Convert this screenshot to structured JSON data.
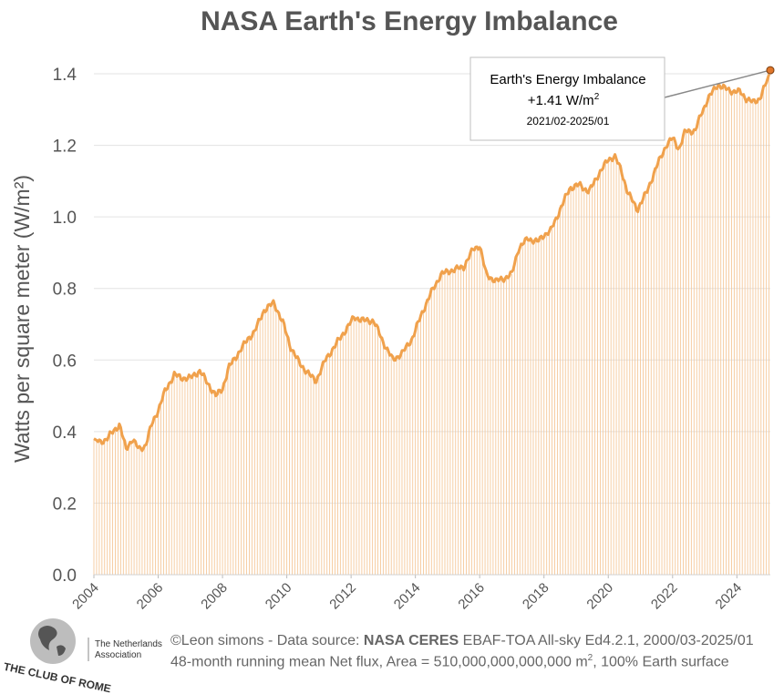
{
  "chart_data": {
    "type": "line",
    "title": "NASA Earth's Energy Imbalance",
    "ylabel": "Watts per square meter (W/m²)",
    "xlabel": "",
    "ylim": [
      0,
      1.45
    ],
    "xlim": [
      2004.0,
      2025.04
    ],
    "yticks": [
      "0.0",
      "0.2",
      "0.4",
      "0.6",
      "0.8",
      "1.0",
      "1.2",
      "1.4"
    ],
    "xticks": [
      "2004",
      "2006",
      "2008",
      "2010",
      "2012",
      "2014",
      "2016",
      "2018",
      "2020",
      "2022",
      "2024"
    ],
    "color": "#f0a14c",
    "series": [
      {
        "name": "48-month running mean Net flux",
        "points": [
          [
            2004.0,
            0.38
          ],
          [
            2004.2,
            0.37
          ],
          [
            2004.4,
            0.38
          ],
          [
            2004.6,
            0.4
          ],
          [
            2004.8,
            0.42
          ],
          [
            2005.0,
            0.35
          ],
          [
            2005.2,
            0.38
          ],
          [
            2005.4,
            0.35
          ],
          [
            2005.6,
            0.36
          ],
          [
            2005.8,
            0.42
          ],
          [
            2006.0,
            0.46
          ],
          [
            2006.2,
            0.51
          ],
          [
            2006.5,
            0.56
          ],
          [
            2006.7,
            0.55
          ],
          [
            2007.0,
            0.55
          ],
          [
            2007.3,
            0.57
          ],
          [
            2007.5,
            0.54
          ],
          [
            2007.8,
            0.5
          ],
          [
            2008.0,
            0.52
          ],
          [
            2008.2,
            0.58
          ],
          [
            2008.5,
            0.62
          ],
          [
            2008.8,
            0.66
          ],
          [
            2009.0,
            0.68
          ],
          [
            2009.3,
            0.74
          ],
          [
            2009.6,
            0.76
          ],
          [
            2009.9,
            0.7
          ],
          [
            2010.1,
            0.64
          ],
          [
            2010.4,
            0.59
          ],
          [
            2010.7,
            0.56
          ],
          [
            2010.9,
            0.54
          ],
          [
            2011.2,
            0.6
          ],
          [
            2011.5,
            0.64
          ],
          [
            2011.8,
            0.68
          ],
          [
            2012.1,
            0.72
          ],
          [
            2012.4,
            0.71
          ],
          [
            2012.7,
            0.71
          ],
          [
            2013.0,
            0.65
          ],
          [
            2013.3,
            0.6
          ],
          [
            2013.6,
            0.62
          ],
          [
            2013.9,
            0.66
          ],
          [
            2014.2,
            0.73
          ],
          [
            2014.5,
            0.79
          ],
          [
            2014.8,
            0.84
          ],
          [
            2015.1,
            0.85
          ],
          [
            2015.5,
            0.86
          ],
          [
            2015.8,
            0.91
          ],
          [
            2016.0,
            0.92
          ],
          [
            2016.2,
            0.84
          ],
          [
            2016.5,
            0.82
          ],
          [
            2016.8,
            0.83
          ],
          [
            2017.0,
            0.84
          ],
          [
            2017.2,
            0.91
          ],
          [
            2017.5,
            0.94
          ],
          [
            2017.8,
            0.93
          ],
          [
            2018.0,
            0.95
          ],
          [
            2018.2,
            0.96
          ],
          [
            2018.5,
            1.02
          ],
          [
            2018.8,
            1.08
          ],
          [
            2019.1,
            1.09
          ],
          [
            2019.4,
            1.07
          ],
          [
            2019.7,
            1.12
          ],
          [
            2020.0,
            1.16
          ],
          [
            2020.2,
            1.17
          ],
          [
            2020.4,
            1.13
          ],
          [
            2020.6,
            1.07
          ],
          [
            2020.9,
            1.02
          ],
          [
            2021.2,
            1.07
          ],
          [
            2021.5,
            1.14
          ],
          [
            2021.8,
            1.2
          ],
          [
            2022.0,
            1.22
          ],
          [
            2022.2,
            1.19
          ],
          [
            2022.4,
            1.24
          ],
          [
            2022.7,
            1.24
          ],
          [
            2022.9,
            1.29
          ],
          [
            2023.1,
            1.33
          ],
          [
            2023.4,
            1.37
          ],
          [
            2023.6,
            1.36
          ],
          [
            2023.9,
            1.35
          ],
          [
            2024.1,
            1.35
          ],
          [
            2024.3,
            1.33
          ],
          [
            2024.5,
            1.32
          ],
          [
            2024.7,
            1.33
          ],
          [
            2024.9,
            1.37
          ],
          [
            2025.04,
            1.41
          ]
        ]
      }
    ],
    "annotation": {
      "line1": "Earth's Energy Imbalance",
      "line2": "+1.41 W/m",
      "sup": "2",
      "line3": "2021/02-2025/01",
      "x": 2025.04,
      "y": 1.41
    }
  },
  "footer": {
    "line1_pre": "©Leon simons - Data source: ",
    "line1_bold": "NASA CERES",
    "line1_post": " EBAF-TOA All-sky Ed4.2.1, 2000/03-2025/01",
    "line2_pre": "48-month running mean Net flux, Area = 510,000,000,000,000 m",
    "line2_sup": "2",
    "line2_post": ", 100% Earth surface"
  },
  "logo": {
    "name": "THE CLUB OF ROME",
    "association_line1": "The Netherlands",
    "association_line2": "Association"
  }
}
